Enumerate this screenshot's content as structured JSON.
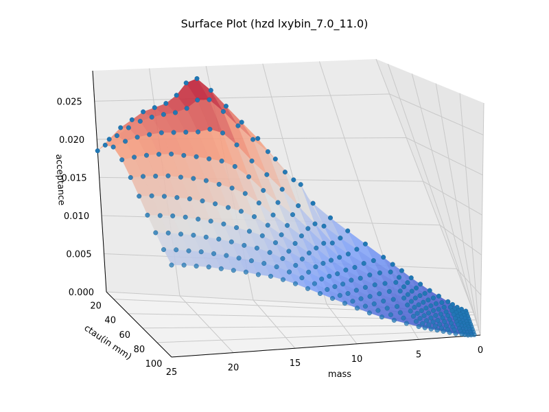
{
  "chart_data": {
    "type": "scatter",
    "subtype": "3d-surface-with-scatter",
    "title": "Surface Plot (hzd lxybin_7.0_11.0)",
    "xlabel": "mass",
    "ylabel": "ctau(in mm)",
    "zlabel": "acceptance",
    "xlim": [
      0,
      25
    ],
    "ylim": [
      10,
      100
    ],
    "zlim": [
      0,
      0.029
    ],
    "x_ticks": [
      "0",
      "5",
      "10",
      "15",
      "20",
      "25"
    ],
    "y_ticks": [
      "20",
      "40",
      "60",
      "80",
      "100"
    ],
    "z_ticks": [
      "0.000",
      "0.005",
      "0.010",
      "0.015",
      "0.020",
      "0.025"
    ],
    "grid": true,
    "colormap": "coolwarm",
    "scatter_color": "#1f77b4",
    "mass_points": [
      0.5,
      0.75,
      1,
      1.25,
      1.5,
      2,
      2.5,
      3,
      3.5,
      4,
      4.5,
      5,
      6,
      7,
      8,
      9,
      10,
      11,
      12,
      13,
      14,
      15,
      16,
      17,
      18,
      19,
      20,
      21,
      22,
      23,
      24,
      25
    ],
    "ctau_points": [
      10,
      20,
      30,
      40,
      50,
      60,
      70,
      80,
      90,
      100
    ],
    "acceptance_grid": [
      [
        0.0001,
        0.0001,
        0.0001,
        0.0001,
        0.0001,
        0.0001,
        0.0001,
        0.0001,
        0.0001,
        0.0001
      ],
      [
        0.0003,
        0.0002,
        0.0002,
        0.0002,
        0.0001,
        0.0001,
        0.0001,
        0.0001,
        0.0001,
        0.0001
      ],
      [
        0.0005,
        0.0004,
        0.0003,
        0.0003,
        0.0002,
        0.0002,
        0.0002,
        0.0002,
        0.0001,
        0.0001
      ],
      [
        0.0008,
        0.0006,
        0.0005,
        0.0004,
        0.0003,
        0.0003,
        0.0003,
        0.0002,
        0.0002,
        0.0002
      ],
      [
        0.0011,
        0.0008,
        0.0007,
        0.0006,
        0.0005,
        0.0004,
        0.0004,
        0.0003,
        0.0003,
        0.0003
      ],
      [
        0.0017,
        0.0013,
        0.0011,
        0.0009,
        0.0008,
        0.0007,
        0.0006,
        0.0005,
        0.0005,
        0.0004
      ],
      [
        0.0023,
        0.0018,
        0.0015,
        0.0012,
        0.001,
        0.0009,
        0.0008,
        0.0007,
        0.0006,
        0.0006
      ],
      [
        0.003,
        0.0023,
        0.0019,
        0.0016,
        0.0014,
        0.0012,
        0.001,
        0.0009,
        0.0008,
        0.0008
      ],
      [
        0.0037,
        0.0029,
        0.0024,
        0.002,
        0.0017,
        0.0015,
        0.0013,
        0.0012,
        0.0011,
        0.001
      ],
      [
        0.0045,
        0.0035,
        0.0029,
        0.0025,
        0.0021,
        0.0018,
        0.0016,
        0.0014,
        0.0013,
        0.0012
      ],
      [
        0.0052,
        0.0041,
        0.0034,
        0.0029,
        0.0025,
        0.0022,
        0.0019,
        0.0017,
        0.0015,
        0.0014
      ],
      [
        0.006,
        0.0047,
        0.0039,
        0.0033,
        0.0029,
        0.0025,
        0.0022,
        0.002,
        0.0018,
        0.0016
      ],
      [
        0.0075,
        0.006,
        0.005,
        0.0042,
        0.0037,
        0.0032,
        0.0028,
        0.0025,
        0.0023,
        0.0021
      ],
      [
        0.009,
        0.0073,
        0.0061,
        0.0052,
        0.0045,
        0.0039,
        0.0035,
        0.0031,
        0.0028,
        0.0026
      ],
      [
        0.0105,
        0.0086,
        0.0072,
        0.0061,
        0.0053,
        0.0047,
        0.0041,
        0.0037,
        0.0034,
        0.0031
      ],
      [
        0.0122,
        0.01,
        0.0085,
        0.0073,
        0.0063,
        0.0056,
        0.0049,
        0.0044,
        0.004,
        0.0037
      ],
      [
        0.015,
        0.015,
        0.0108,
        0.009,
        0.0075,
        0.0064,
        0.0057,
        0.0051,
        0.0047,
        0.0044
      ],
      [
        0.0175,
        0.0165,
        0.013,
        0.0108,
        0.009,
        0.0077,
        0.0067,
        0.006,
        0.0055,
        0.0051
      ],
      [
        0.02,
        0.019,
        0.015,
        0.0125,
        0.0105,
        0.009,
        0.0079,
        0.007,
        0.0063,
        0.0058
      ],
      [
        0.022,
        0.0205,
        0.0168,
        0.014,
        0.0118,
        0.0102,
        0.0089,
        0.0079,
        0.0071,
        0.0065
      ],
      [
        0.024,
        0.0222,
        0.0185,
        0.0155,
        0.0131,
        0.0113,
        0.0099,
        0.0088,
        0.0079,
        0.0072
      ],
      [
        0.026,
        0.024,
        0.0205,
        0.0172,
        0.0146,
        0.0125,
        0.011,
        0.0097,
        0.0087,
        0.0079
      ],
      [
        0.0275,
        0.0255,
        0.022,
        0.0185,
        0.0158,
        0.0136,
        0.0119,
        0.0105,
        0.0094,
        0.0085
      ],
      [
        0.027,
        0.0255,
        0.0225,
        0.0192,
        0.0165,
        0.0143,
        0.0125,
        0.0111,
        0.0099,
        0.009
      ],
      [
        0.0255,
        0.0245,
        0.0222,
        0.0195,
        0.017,
        0.0148,
        0.013,
        0.0115,
        0.0103,
        0.0093
      ],
      [
        0.0245,
        0.024,
        0.0222,
        0.0198,
        0.0175,
        0.0153,
        0.0135,
        0.012,
        0.0107,
        0.0097
      ],
      [
        0.024,
        0.0238,
        0.0222,
        0.02,
        0.0178,
        0.0157,
        0.0139,
        0.0124,
        0.0111,
        0.01
      ],
      [
        0.0235,
        0.0235,
        0.0222,
        0.0202,
        0.018,
        0.016,
        0.0142,
        0.0127,
        0.0114,
        0.0103
      ],
      [
        0.0225,
        0.023,
        0.022,
        0.0202,
        0.0182,
        0.0162,
        0.0145,
        0.013,
        0.0117,
        0.0106
      ],
      [
        0.0215,
        0.0222,
        0.0217,
        0.0201,
        0.0182,
        0.0164,
        0.0147,
        0.0132,
        0.0119,
        0.0108
      ],
      [
        0.02,
        0.0212,
        0.0212,
        0.0199,
        0.0182,
        0.0165,
        0.0148,
        0.0134,
        0.0121,
        0.011
      ],
      [
        0.0185,
        0.02,
        0.0205,
        0.0196,
        0.0181,
        0.0165,
        0.0149,
        0.0135,
        0.0122,
        0.0111
      ]
    ]
  }
}
